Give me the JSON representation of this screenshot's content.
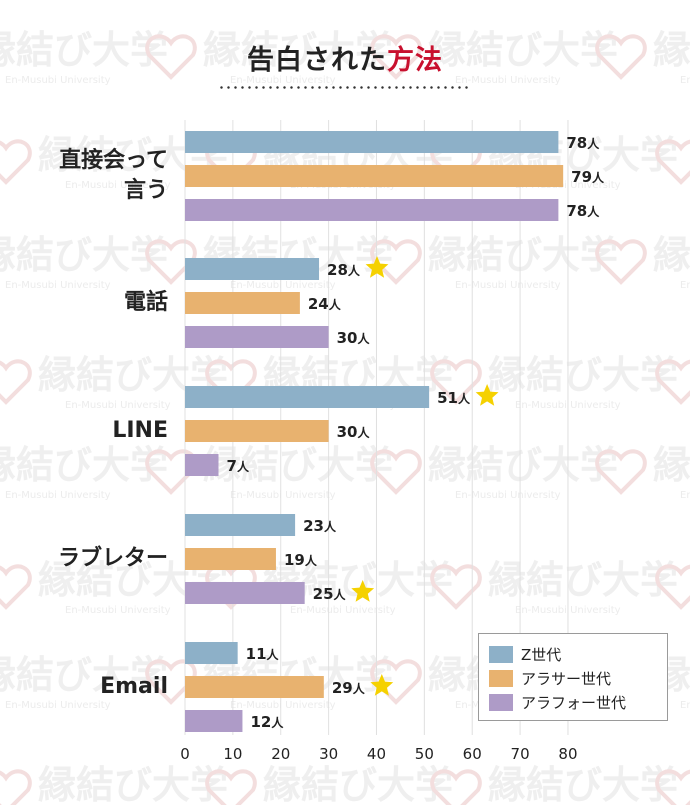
{
  "watermark": {
    "text": "縁結び大学",
    "subtext": "En-Musubi University"
  },
  "title": {
    "main": "告白された",
    "accent": "方法"
  },
  "colors": {
    "accent": "#c8102e",
    "gen_z": "#8db0c8",
    "around_30": "#e8b26f",
    "around_40": "#ae9bc7",
    "star": "#f5d100",
    "grid": "#e0e0e0"
  },
  "chart_data": {
    "type": "bar",
    "orientation": "horizontal",
    "categories": [
      "直接会って\n言う",
      "電話",
      "LINE",
      "ラブレター",
      "Email"
    ],
    "series": [
      {
        "name": "Z世代",
        "values": [
          78,
          28,
          51,
          23,
          11
        ]
      },
      {
        "name": "アラサー世代",
        "values": [
          79,
          24,
          30,
          19,
          29
        ]
      },
      {
        "name": "アラフォー世代",
        "values": [
          78,
          30,
          7,
          25,
          12
        ]
      }
    ],
    "value_suffix": "人",
    "highlighted": [
      {
        "category": "電話",
        "series": "Z世代"
      },
      {
        "category": "LINE",
        "series": "Z世代"
      },
      {
        "category": "ラブレター",
        "series": "アラフォー世代"
      },
      {
        "category": "Email",
        "series": "アラサー世代"
      }
    ],
    "xlim": [
      0,
      80
    ],
    "xticks": [
      0,
      10,
      20,
      30,
      40,
      50,
      60,
      70,
      80
    ],
    "grid": true,
    "legend_position": "bottom-right"
  }
}
